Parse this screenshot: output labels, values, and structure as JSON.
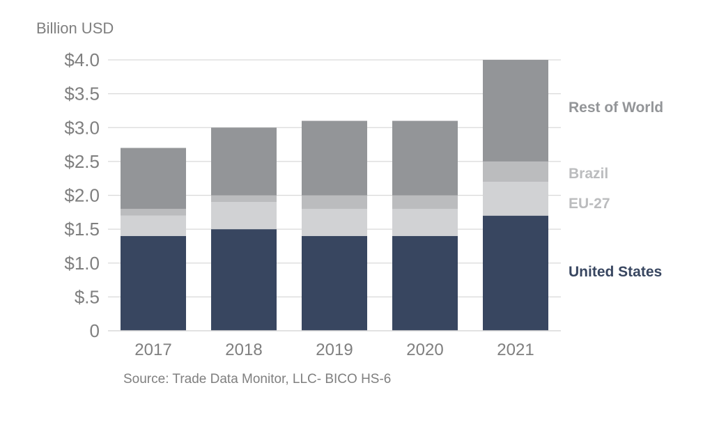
{
  "chart_data": {
    "type": "bar",
    "stacked": true,
    "title": "",
    "ylabel": "Billion USD",
    "xlabel": "",
    "source": "Source: Trade Data Monitor, LLC- BICO HS-6",
    "categories": [
      "2017",
      "2018",
      "2019",
      "2020",
      "2021"
    ],
    "ylim": [
      0,
      4.0
    ],
    "yticks": [
      0,
      0.5,
      1.0,
      1.5,
      2.0,
      2.5,
      3.0,
      3.5,
      4.0
    ],
    "ytick_labels": [
      "0",
      "$.5",
      "$1.0",
      "$1.5",
      "$2.0",
      "$2.5",
      "$3.0",
      "$3.5",
      "$4.0"
    ],
    "grid": true,
    "legend_position": "right",
    "series": [
      {
        "name": "United States",
        "color": "#384660",
        "values": [
          1.4,
          1.5,
          1.4,
          1.4,
          1.7
        ]
      },
      {
        "name": "EU-27",
        "color": "#d1d2d4",
        "values": [
          0.3,
          0.4,
          0.4,
          0.4,
          0.5
        ]
      },
      {
        "name": "Brazil",
        "color": "#bbbcbe",
        "values": [
          0.1,
          0.1,
          0.2,
          0.2,
          0.3
        ]
      },
      {
        "name": "Rest of World",
        "color": "#939598",
        "values": [
          0.9,
          1.0,
          1.1,
          1.1,
          1.5
        ]
      }
    ],
    "legend_text_colors": {
      "United States": "#384660",
      "EU-27": "#bbbcbe",
      "Brazil": "#bbbcbe",
      "Rest of World": "#939598"
    }
  }
}
